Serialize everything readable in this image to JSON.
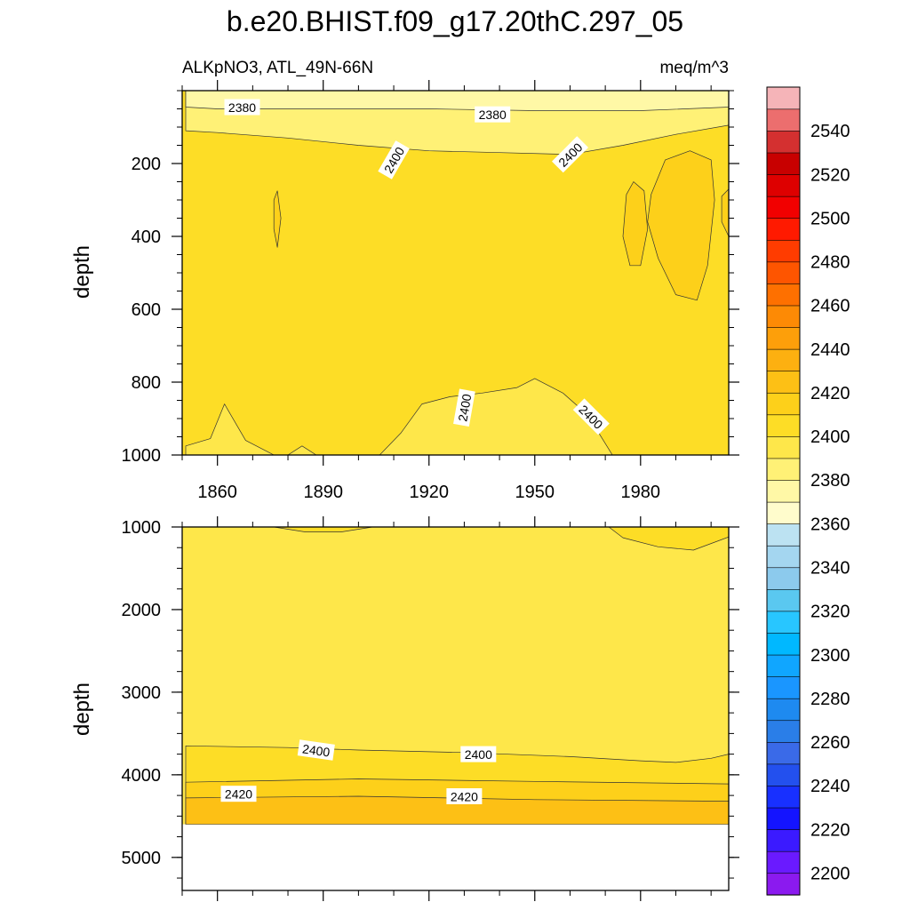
{
  "chart_data": {
    "type": "contour",
    "title": "b.e20.BHIST.f09_g17.20thC.297_05",
    "subtitle_left": "ALKpNO3, ATL_49N-66N",
    "subtitle_right": "meq/m^3",
    "xlim": [
      1850,
      2005
    ],
    "x_ticks": [
      1860,
      1890,
      1920,
      1950,
      1980
    ],
    "x_tick_labels": [
      "1860",
      "1890",
      "1920",
      "1950",
      "1980"
    ],
    "panels": [
      {
        "name": "upper",
        "ylabel": "depth",
        "ylim": [
          0,
          1000
        ],
        "y_ticks": [
          200,
          400,
          600,
          800,
          1000
        ],
        "y_tick_labels": [
          "200",
          "400",
          "600",
          "800",
          "1000"
        ],
        "background_level": 2405,
        "regions": [
          {
            "level": 2365,
            "points": [
              [
                1851,
                0
              ],
              [
                1890,
                0
              ],
              [
                1894,
                14
              ],
              [
                1898,
                0
              ],
              [
                1920,
                0
              ],
              [
                1924,
                12
              ],
              [
                1928,
                0
              ],
              [
                1970,
                0
              ],
              [
                1970,
                10
              ],
              [
                1940,
                12
              ],
              [
                1900,
                12
              ],
              [
                1860,
                14
              ],
              [
                1851,
                10
              ]
            ]
          },
          {
            "level": 2385,
            "points": [
              [
                1851,
                0
              ],
              [
                2005,
                0
              ],
              [
                2005,
                95
              ],
              [
                1990,
                120
              ],
              [
                1975,
                150
              ],
              [
                1960,
                175
              ],
              [
                1940,
                170
              ],
              [
                1920,
                165
              ],
              [
                1900,
                150
              ],
              [
                1880,
                130
              ],
              [
                1860,
                115
              ],
              [
                1851,
                110
              ]
            ]
          },
          {
            "level": 2375,
            "points": [
              [
                1851,
                0
              ],
              [
                2005,
                0
              ],
              [
                2005,
                45
              ],
              [
                1980,
                55
              ],
              [
                1950,
                55
              ],
              [
                1920,
                50
              ],
              [
                1890,
                50
              ],
              [
                1860,
                50
              ],
              [
                1851,
                45
              ]
            ]
          },
          {
            "level": 2395,
            "points": [
              [
                1851,
                1000
              ],
              [
                1851,
                975
              ],
              [
                1858,
                955
              ],
              [
                1862,
                860
              ],
              [
                1868,
                960
              ],
              [
                1876,
                1000
              ]
            ]
          },
          {
            "level": 2395,
            "points": [
              [
                1880,
                1000
              ],
              [
                1884,
                975
              ],
              [
                1888,
                1000
              ]
            ]
          },
          {
            "level": 2395,
            "points": [
              [
                1906,
                1000
              ],
              [
                1912,
                940
              ],
              [
                1918,
                860
              ],
              [
                1926,
                840
              ],
              [
                1935,
                830
              ],
              [
                1945,
                815
              ],
              [
                1950,
                790
              ],
              [
                1958,
                830
              ],
              [
                1965,
                890
              ],
              [
                1972,
                1000
              ]
            ]
          },
          {
            "level": 2415,
            "points": [
              [
                1976,
                285
              ],
              [
                1978,
                250
              ],
              [
                1981,
                275
              ],
              [
                1982,
                380
              ],
              [
                1980,
                480
              ],
              [
                1977,
                480
              ],
              [
                1975,
                400
              ]
            ]
          },
          {
            "level": 2415,
            "points": [
              [
                1983,
                285
              ],
              [
                1987,
                190
              ],
              [
                1994,
                165
              ],
              [
                2000,
                190
              ],
              [
                2001,
                300
              ],
              [
                1999,
                480
              ],
              [
                1996,
                575
              ],
              [
                1990,
                560
              ],
              [
                1985,
                460
              ],
              [
                1982,
                360
              ]
            ]
          },
          {
            "level": 2415,
            "points": [
              [
                2003,
                290
              ],
              [
                2005,
                270
              ],
              [
                2005,
                400
              ],
              [
                2003,
                360
              ]
            ]
          },
          {
            "level": 2415,
            "points": [
              [
                1876,
                300
              ],
              [
                1877,
                275
              ],
              [
                1878,
                350
              ],
              [
                1877,
                430
              ],
              [
                1876,
                380
              ]
            ]
          }
        ],
        "contour_labels": [
          {
            "text": "2380",
            "x": 1867,
            "y": 45,
            "angle": 0
          },
          {
            "text": "2380",
            "x": 1938,
            "y": 65,
            "angle": 0
          },
          {
            "text": "2400",
            "x": 1910,
            "y": 190,
            "angle": -60
          },
          {
            "text": "2400",
            "x": 1960,
            "y": 175,
            "angle": -45
          },
          {
            "text": "2400",
            "x": 1930,
            "y": 870,
            "angle": -80
          },
          {
            "text": "2400",
            "x": 1966,
            "y": 895,
            "angle": 45
          }
        ]
      },
      {
        "name": "lower",
        "ylabel": "depth",
        "ylim": [
          1000,
          5400
        ],
        "y_ticks": [
          1000,
          2000,
          3000,
          4000,
          5000
        ],
        "y_tick_labels": [
          "1000",
          "2000",
          "3000",
          "4000",
          "5000"
        ],
        "data_ymax": 4600,
        "background_level": 2395,
        "regions": [
          {
            "level": 2405,
            "points": [
              [
                1851,
                3650
              ],
              [
                1880,
                3670
              ],
              [
                1900,
                3700
              ],
              [
                1930,
                3730
              ],
              [
                1960,
                3780
              ],
              [
                1980,
                3830
              ],
              [
                1990,
                3850
              ],
              [
                2000,
                3800
              ],
              [
                2005,
                3750
              ],
              [
                2005,
                4600
              ],
              [
                1851,
                4600
              ]
            ]
          },
          {
            "level": 2415,
            "points": [
              [
                1851,
                4090
              ],
              [
                1900,
                4050
              ],
              [
                1950,
                4080
              ],
              [
                2005,
                4110
              ],
              [
                2005,
                4600
              ],
              [
                1851,
                4600
              ]
            ]
          },
          {
            "level": 2425,
            "points": [
              [
                1851,
                4280
              ],
              [
                1900,
                4260
              ],
              [
                1950,
                4300
              ],
              [
                2005,
                4320
              ],
              [
                2005,
                4600
              ],
              [
                1851,
                4600
              ]
            ]
          },
          {
            "level": 2405,
            "points": [
              [
                1971,
                1000
              ],
              [
                2005,
                1000
              ],
              [
                2005,
                1120
              ],
              [
                1995,
                1280
              ],
              [
                1985,
                1240
              ],
              [
                1975,
                1130
              ]
            ]
          },
          {
            "level": 2405,
            "points": [
              [
                1876,
                1000
              ],
              [
                1904,
                1000
              ],
              [
                1895,
                1060
              ],
              [
                1885,
                1060
              ]
            ]
          }
        ],
        "contour_labels": [
          {
            "text": "2400",
            "x": 1888,
            "y": 3700,
            "angle": 8
          },
          {
            "text": "2400",
            "x": 1934,
            "y": 3750,
            "angle": 0
          },
          {
            "text": "2420",
            "x": 1866,
            "y": 4230,
            "angle": 0
          },
          {
            "text": "2420",
            "x": 1930,
            "y": 4260,
            "angle": 0
          }
        ]
      }
    ],
    "colorbar": {
      "levels": [
        2190,
        2200,
        2210,
        2220,
        2230,
        2240,
        2250,
        2260,
        2270,
        2280,
        2290,
        2300,
        2310,
        2320,
        2330,
        2340,
        2350,
        2360,
        2370,
        2380,
        2390,
        2400,
        2410,
        2420,
        2430,
        2440,
        2450,
        2460,
        2470,
        2480,
        2490,
        2500,
        2510,
        2520,
        2530,
        2540,
        2550,
        2560
      ],
      "colors": [
        "#8b1aef",
        "#6a1aff",
        "#3b1aff",
        "#1414ff",
        "#1830ff",
        "#2350ee",
        "#3a6ae8",
        "#2a7ee8",
        "#1e8af0",
        "#1a96ff",
        "#10a6ff",
        "#00b8ff",
        "#28c6ff",
        "#5ac8f0",
        "#8ccaed",
        "#a4d6f0",
        "#bce2f2",
        "#fffccc",
        "#fff8a6",
        "#fff176",
        "#fee74a",
        "#fddd26",
        "#fdd01a",
        "#fdc015",
        "#fdb010",
        "#fd9f0a",
        "#fd8a05",
        "#fe7000",
        "#fe5500",
        "#ff3c00",
        "#ff1a00",
        "#f20000",
        "#de0000",
        "#c80000",
        "#d43030",
        "#ec6e6e",
        "#f5b4b8"
      ],
      "tick_values": [
        2200,
        2220,
        2240,
        2260,
        2280,
        2300,
        2320,
        2340,
        2360,
        2380,
        2400,
        2420,
        2440,
        2460,
        2480,
        2500,
        2520,
        2540
      ],
      "tick_labels": [
        "2200",
        "2220",
        "2240",
        "2260",
        "2280",
        "2300",
        "2320",
        "2340",
        "2360",
        "2380",
        "2400",
        "2420",
        "2440",
        "2460",
        "2480",
        "2500",
        "2520",
        "2540"
      ]
    }
  }
}
